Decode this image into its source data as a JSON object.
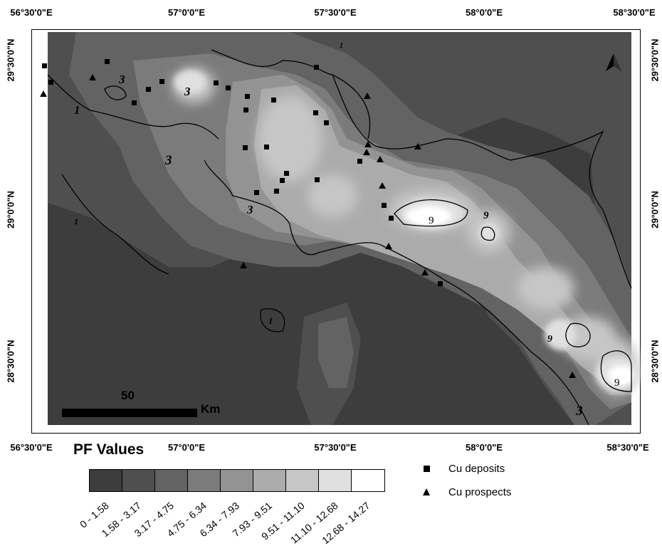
{
  "map": {
    "colors": {
      "class_fills": [
        "#3d3d3d",
        "#4f4f4f",
        "#636363",
        "#7b7b7b",
        "#939393",
        "#ababab",
        "#c6c6c6",
        "#e0e0e0",
        "#ffffff"
      ],
      "frame": "#000000",
      "symbols": "#000000"
    },
    "coords": {
      "top": [
        "56°30'0\"E",
        "57°0'0\"E",
        "57°30'0\"E",
        "58°0'0\"E",
        "58°30'0\"E"
      ],
      "bottom": [
        "56°30'0\"E",
        "57°0'0\"E",
        "57°30'0\"E",
        "58°0'0\"E",
        "58°30'0\"E"
      ],
      "left": [
        "29°30'0\"N",
        "29°0'0\"N",
        "28°30'0\"N"
      ],
      "right": [
        "29°30'0\"N",
        "29°0'0\"N",
        "28°30'0\"N"
      ]
    },
    "contour_labels": [
      "1",
      "1",
      "1",
      "1",
      "3",
      "3",
      "3",
      "3",
      "3",
      "9",
      "9",
      "9",
      "9"
    ],
    "north_arrow": "north-arrow-icon",
    "scale_bar": {
      "value": "50",
      "unit": "Km"
    }
  },
  "legend": {
    "title": "PF Values",
    "ranges": [
      "0 - 1.58",
      "1.58 - 3.17",
      "3.17 - 4.75",
      "4.75 - 6.34",
      "6.34 - 7.93",
      "7.93 - 9.51",
      "9.51 - 11.10",
      "11.10 - 12.68",
      "12.68 - 14.27"
    ],
    "symbols": [
      {
        "icon": "square-icon",
        "label": "Cu deposits"
      },
      {
        "icon": "triangle-icon",
        "label": "Cu prospects"
      }
    ]
  }
}
